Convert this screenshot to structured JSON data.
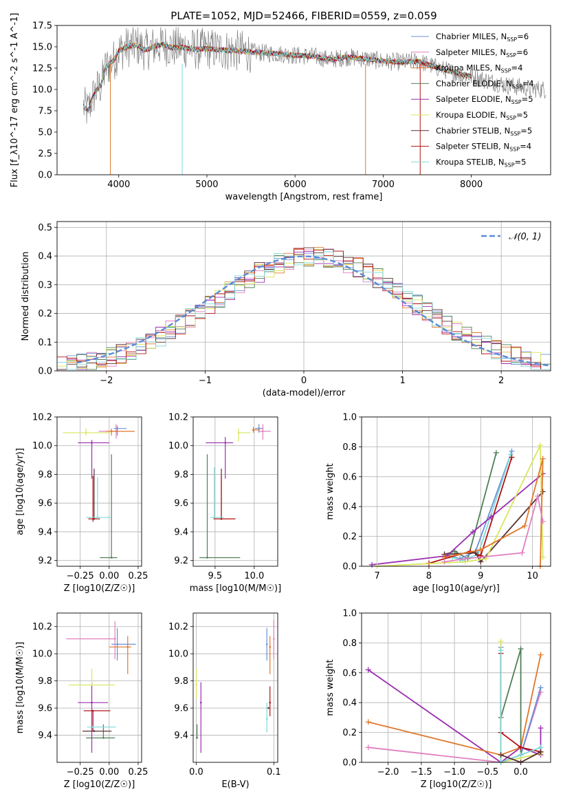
{
  "colors": {
    "blue": "#6b8fd6",
    "pink": "#e07fc0",
    "orange": "#e0772a",
    "dkgreen": "#4f7f54",
    "purple": "#9a2db0",
    "yellow": "#d8e65a",
    "brown": "#5a3030",
    "red": "#b01010",
    "cyan": "#7fd8d8",
    "gray": "#808080",
    "dashed": "#5b8bd9"
  },
  "chart_data": [
    {
      "id": "spectrum",
      "type": "line",
      "title": "PLATE=1052, MJD=52466, FIBERID=0559, z=0.059",
      "xlabel": "wavelength [Angstrom, rest frame]",
      "ylabel": "Flux [f_λ10^-17 erg cm^-2 s^-1 A^-1]",
      "xlim": [
        3300,
        8900
      ],
      "ylim": [
        0,
        17.5
      ],
      "xticks": [
        4000,
        5000,
        6000,
        7000,
        8000
      ],
      "yticks": [
        "0.0",
        "2.5",
        "5.0",
        "7.5",
        "10.0",
        "12.5",
        "15.0",
        "17.5"
      ],
      "x": [
        3600,
        3650,
        3700,
        3750,
        3800,
        3850,
        3900,
        3950,
        4000,
        4100,
        4200,
        4300,
        4400,
        4500,
        4600,
        4700,
        4800,
        4900,
        5000,
        5200,
        5400,
        5600,
        5800,
        6000,
        6200,
        6400,
        6600,
        6800,
        7000,
        7200,
        7400,
        7600,
        7800,
        8000,
        8200,
        8400,
        8600,
        8800
      ],
      "model_y": [
        8.0,
        7.5,
        9.0,
        10.0,
        10.5,
        12.5,
        13.0,
        13.5,
        14.5,
        15.0,
        15.2,
        14.6,
        15.0,
        15.3,
        14.9,
        15.0,
        14.8,
        14.7,
        14.8,
        14.6,
        14.5,
        14.3,
        14.2,
        14.0,
        13.9,
        13.5,
        13.8,
        13.6,
        13.3,
        13.2,
        13.3,
        12.6,
        12.0,
        11.5,
        11.0,
        10.5,
        10.2,
        10.0
      ],
      "series": [
        {
          "name": "Chabrier MILES, N_SSP=6",
          "color": "blue"
        },
        {
          "name": "Salpeter MILES, N_SSP=6",
          "color": "pink"
        },
        {
          "name": "Kroupa MILES, N_SSP=4",
          "color": "orange"
        },
        {
          "name": "Chabrier ELODIE, N_SSP=4",
          "color": "dkgreen"
        },
        {
          "name": "Salpeter ELODIE, N_SSP=5",
          "color": "purple"
        },
        {
          "name": "Kroupa ELODIE, N_SSP=5",
          "color": "yellow"
        },
        {
          "name": "Chabrier STELIB, N_SSP=5",
          "color": "brown"
        },
        {
          "name": "Salpeter STELIB, N_SSP=4",
          "color": "red"
        },
        {
          "name": "Kroupa STELIB, N_SSP=5",
          "color": "cyan"
        }
      ],
      "legend": "top-right",
      "grid": false
    },
    {
      "id": "residuals",
      "type": "line",
      "xlabel": "(data-model)/error",
      "ylabel": "Normed distribution",
      "xlim": [
        -2.5,
        2.5
      ],
      "ylim": [
        0,
        0.52
      ],
      "xticks": [
        "−2",
        "−1",
        "0",
        "1",
        "2"
      ],
      "yticks": [
        "0.0",
        "0.1",
        "0.2",
        "0.3",
        "0.4",
        "0.5"
      ],
      "legend_label": "𝒩(0, 1)",
      "bins": [
        -2.5,
        -2.4,
        -2.3,
        -2.2,
        -2.1,
        -2.0,
        -1.9,
        -1.8,
        -1.7,
        -1.6,
        -1.5,
        -1.4,
        -1.3,
        -1.2,
        -1.1,
        -1.0,
        -0.9,
        -0.8,
        -0.7,
        -0.6,
        -0.5,
        -0.4,
        -0.3,
        -0.2,
        -0.1,
        0.0,
        0.1,
        0.2,
        0.3,
        0.4,
        0.5,
        0.6,
        0.7,
        0.8,
        0.9,
        1.0,
        1.1,
        1.2,
        1.3,
        1.4,
        1.5,
        1.6,
        1.7,
        1.8,
        1.9,
        2.0,
        2.1,
        2.2,
        2.3,
        2.4,
        2.5
      ],
      "grid": true,
      "legend": "top-right"
    },
    {
      "id": "age-vs-Z",
      "type": "scatter",
      "xlabel": "Z [log10(Z/Z☉)]",
      "ylabel": "age  [log10(age/yr)]",
      "xlim": [
        -0.45,
        0.28
      ],
      "ylim": [
        9.16,
        10.2
      ],
      "xticks": [
        "−0.25",
        "0.00",
        "0.25"
      ],
      "yticks": [
        "9.2",
        "9.4",
        "9.6",
        "9.8",
        "10.0",
        "10.2"
      ],
      "points": [
        {
          "x": 0.07,
          "y": 10.12,
          "xerr": [
            0.03,
            0.08
          ],
          "yerr": [
            0.05,
            0.02
          ],
          "c": "blue"
        },
        {
          "x": 0.06,
          "y": 10.1,
          "xerr": [
            0.15,
            0.02
          ],
          "yerr": [
            0.05,
            0.05
          ],
          "c": "pink"
        },
        {
          "x": 0.02,
          "y": 10.1,
          "xerr": [
            0.05,
            0.2
          ],
          "yerr": [
            0.03,
            0.02
          ],
          "c": "orange"
        },
        {
          "x": 0.02,
          "y": 9.22,
          "xerr": [
            0.1,
            0.05
          ],
          "yerr": [
            0.0,
            0.72
          ],
          "c": "dkgreen"
        },
        {
          "x": -0.15,
          "y": 10.02,
          "xerr": [
            0.12,
            0.15
          ],
          "yerr": [
            0.25,
            0.02
          ],
          "c": "purple"
        },
        {
          "x": -0.2,
          "y": 10.09,
          "xerr": [
            0.2,
            0.21
          ],
          "yerr": [
            0.02,
            0.03
          ],
          "c": "yellow"
        },
        {
          "x": -0.13,
          "y": 9.49,
          "xerr": [
            0.0,
            0.0
          ],
          "yerr": [
            0.0,
            0.35
          ],
          "c": "brown"
        },
        {
          "x": -0.14,
          "y": 9.49,
          "xerr": [
            0.04,
            0.06
          ],
          "yerr": [
            0.02,
            0.3
          ],
          "c": "red"
        },
        {
          "x": -0.1,
          "y": 9.5,
          "xerr": [
            0.1,
            0.12
          ],
          "yerr": [
            0.02,
            0.28
          ],
          "c": "cyan"
        }
      ]
    },
    {
      "id": "age-vs-mass",
      "type": "scatter",
      "xlabel": "mass [log10(M/M☉)]",
      "ylabel": "",
      "xlim": [
        9.22,
        10.3
      ],
      "ylim": [
        9.16,
        10.2
      ],
      "xticks": [
        "9.5",
        "10.0"
      ],
      "yticks": [
        "9.2",
        "9.4",
        "9.6",
        "9.8",
        "10.0",
        "10.2"
      ],
      "points": [
        {
          "x": 10.06,
          "y": 10.12,
          "xerr": [
            0.05,
            0.06
          ],
          "yerr": [
            0.03,
            0.03
          ],
          "c": "blue"
        },
        {
          "x": 10.11,
          "y": 10.1,
          "xerr": [
            0.06,
            0.1
          ],
          "yerr": [
            0.06,
            0.05
          ],
          "c": "pink"
        },
        {
          "x": 9.99,
          "y": 10.11,
          "xerr": [
            0.02,
            0.08
          ],
          "yerr": [
            0.02,
            0.02
          ],
          "c": "orange"
        },
        {
          "x": 9.4,
          "y": 9.22,
          "xerr": [
            0.1,
            0.42
          ],
          "yerr": [
            0.0,
            0.72
          ],
          "c": "dkgreen"
        },
        {
          "x": 9.63,
          "y": 10.02,
          "xerr": [
            0.25,
            0.1
          ],
          "yerr": [
            0.25,
            0.04
          ],
          "c": "purple"
        },
        {
          "x": 9.8,
          "y": 10.09,
          "xerr": [
            0.0,
            0.15
          ],
          "yerr": [
            0.06,
            0.03
          ],
          "c": "yellow"
        },
        {
          "x": 9.58,
          "y": 9.49,
          "xerr": [
            0.0,
            0.0
          ],
          "yerr": [
            0.0,
            0.35
          ],
          "c": "brown"
        },
        {
          "x": 9.58,
          "y": 9.49,
          "xerr": [
            0.1,
            0.18
          ],
          "yerr": [
            0.0,
            0.3
          ],
          "c": "red"
        },
        {
          "x": 9.49,
          "y": 9.5,
          "xerr": [
            0.05,
            0.12
          ],
          "yerr": [
            0.0,
            0.35
          ],
          "c": "cyan"
        }
      ]
    },
    {
      "id": "mw-vs-age",
      "type": "line",
      "xlabel": "age  [log10(age/yr)]",
      "ylabel": "mass weight",
      "xlim": [
        6.7,
        10.35
      ],
      "ylim": [
        0,
        1.0
      ],
      "xticks": [
        "7",
        "8",
        "9",
        "10"
      ],
      "yticks": [
        "0.0",
        "0.2",
        "0.4",
        "0.6",
        "0.8",
        "1.0"
      ],
      "grid": true,
      "series": [
        {
          "c": "dkgreen",
          "x": [
            8.3,
            8.5,
            8.75,
            9.3
          ],
          "y": [
            0.08,
            0.1,
            0.05,
            0.76
          ]
        },
        {
          "c": "blue",
          "x": [
            8.4,
            8.6,
            8.9,
            9.6
          ],
          "y": [
            0.07,
            0.05,
            0.1,
            0.77
          ]
        },
        {
          "c": "cyan",
          "x": [
            8.45,
            8.65,
            8.95,
            9.58
          ],
          "y": [
            0.06,
            0.04,
            0.08,
            0.75
          ]
        },
        {
          "c": "red",
          "x": [
            8.0,
            8.8,
            9.0,
            9.6
          ],
          "y": [
            0.02,
            0.1,
            0.07,
            0.73
          ]
        },
        {
          "c": "brown",
          "x": [
            8.3,
            8.9,
            9.0,
            10.2
          ],
          "y": [
            0.08,
            0.09,
            0.03,
            0.5
          ]
        },
        {
          "c": "purple",
          "x": [
            6.9,
            8.35,
            8.85,
            9.2,
            10.2
          ],
          "y": [
            0.01,
            0.07,
            0.23,
            0.33,
            0.62
          ]
        },
        {
          "c": "yellow",
          "x": [
            7.0,
            8.7,
            9.1,
            10.15,
            10.2
          ],
          "y": [
            0.0,
            0.03,
            0.05,
            0.81,
            0.06
          ]
        },
        {
          "c": "orange",
          "x": [
            8.3,
            9.0,
            9.85,
            10.2,
            10.15
          ],
          "y": [
            0.06,
            0.11,
            0.27,
            0.72,
            0.0
          ]
        },
        {
          "c": "pink",
          "x": [
            8.3,
            8.7,
            9.8,
            10.1,
            10.2
          ],
          "y": [
            0.03,
            0.05,
            0.09,
            0.47,
            0.3
          ]
        }
      ]
    },
    {
      "id": "mass-vs-Z",
      "type": "scatter",
      "xlabel": "Z [log10(Z/Z☉)]",
      "ylabel": "mass [log10(M/M☉)]",
      "xlim": [
        -0.45,
        0.28
      ],
      "ylim": [
        9.2,
        10.3
      ],
      "xticks": [
        "−0.25",
        "0.00",
        "0.25"
      ],
      "yticks": [
        "9.4",
        "9.6",
        "9.8",
        "10.0",
        "10.2"
      ],
      "points": [
        {
          "x": 0.07,
          "y": 10.07,
          "xerr": [
            0.05,
            0.16
          ],
          "yerr": [
            0.12,
            0.12
          ],
          "c": "blue"
        },
        {
          "x": 0.05,
          "y": 10.11,
          "xerr": [
            0.42,
            0.0
          ],
          "yerr": [
            0.15,
            0.13
          ],
          "c": "pink"
        },
        {
          "x": 0.16,
          "y": 10.05,
          "xerr": [
            0.16,
            0.03
          ],
          "yerr": [
            0.2,
            0.08
          ],
          "c": "orange"
        },
        {
          "x": -0.05,
          "y": 9.38,
          "xerr": [
            0.15,
            0.1
          ],
          "yerr": [
            0.0,
            0.1
          ],
          "c": "dkgreen"
        },
        {
          "x": -0.15,
          "y": 9.64,
          "xerr": [
            0.12,
            0.14
          ],
          "yerr": [
            0.37,
            0.15
          ],
          "c": "purple"
        },
        {
          "x": -0.15,
          "y": 9.77,
          "xerr": [
            0.2,
            0.2
          ],
          "yerr": [
            0.0,
            0.12
          ],
          "c": "yellow"
        },
        {
          "x": -0.13,
          "y": 9.43,
          "xerr": [
            0.1,
            0.15
          ],
          "yerr": [
            0.0,
            0.0
          ],
          "c": "brown"
        },
        {
          "x": -0.14,
          "y": 9.58,
          "xerr": [
            0.08,
            0.15
          ],
          "yerr": [
            0.15,
            0.0
          ],
          "c": "red"
        },
        {
          "x": -0.14,
          "y": 9.46,
          "xerr": [
            0.05,
            0.2
          ],
          "yerr": [
            0.0,
            0.0
          ],
          "c": "cyan"
        }
      ]
    },
    {
      "id": "mass-vs-EBV",
      "type": "scatter",
      "xlabel": "E(B-V)",
      "ylabel": "",
      "xlim": [
        -0.004,
        0.105
      ],
      "ylim": [
        9.2,
        10.3
      ],
      "xticks": [
        "0.0",
        "0.1"
      ],
      "yticks": [
        "9.4",
        "9.6",
        "9.8",
        "10.0",
        "10.2"
      ],
      "points": [
        {
          "x": 0.091,
          "y": 10.07,
          "yerr": [
            0.12,
            0.12
          ],
          "c": "blue"
        },
        {
          "x": 0.1,
          "y": 10.11,
          "yerr": [
            0.15,
            0.14
          ],
          "c": "pink"
        },
        {
          "x": 0.095,
          "y": 10.05,
          "yerr": [
            0.2,
            0.08
          ],
          "c": "orange"
        },
        {
          "x": 0.001,
          "y": 9.38,
          "yerr": [
            0.0,
            0.1
          ],
          "c": "dkgreen"
        },
        {
          "x": 0.006,
          "y": 9.64,
          "yerr": [
            0.37,
            0.15
          ],
          "c": "purple"
        },
        {
          "x": 0.0,
          "y": 9.77,
          "yerr": [
            0.1,
            0.12
          ],
          "c": "yellow"
        },
        {
          "x": 0.093,
          "y": 9.6,
          "yerr": [
            0.0,
            0.0
          ],
          "c": "brown"
        },
        {
          "x": 0.095,
          "y": 9.64,
          "yerr": [
            0.1,
            0.12
          ],
          "c": "red"
        },
        {
          "x": 0.091,
          "y": 9.52,
          "yerr": [
            0.1,
            0.12
          ],
          "c": "cyan"
        }
      ]
    },
    {
      "id": "mw-vs-Z",
      "type": "line",
      "xlabel": "Z [log10(Z/Z☉)]",
      "ylabel": "mass weight",
      "xlim": [
        -2.4,
        0.45
      ],
      "ylim": [
        0,
        1.0
      ],
      "xticks": [
        "−2.0",
        "−1.5",
        "−1.0",
        "−0.5",
        "0.0"
      ],
      "yticks": [
        "0.0",
        "0.2",
        "0.4",
        "0.6",
        "0.8",
        "1.0"
      ],
      "grid": true,
      "series": [
        {
          "c": "purple",
          "x": [
            -2.3,
            -0.3,
            0.0,
            0.3,
            0.3
          ],
          "y": [
            0.62,
            0.0,
            0.1,
            0.05,
            0.23
          ]
        },
        {
          "c": "orange",
          "x": [
            -2.3,
            -0.3,
            0.0,
            0.3
          ],
          "y": [
            0.27,
            0.05,
            0.1,
            0.72
          ]
        },
        {
          "c": "pink",
          "x": [
            -2.3,
            -0.3,
            0.0,
            0.3
          ],
          "y": [
            0.1,
            0.0,
            0.05,
            0.47
          ]
        },
        {
          "c": "blue",
          "x": [
            -0.3,
            -0.3,
            0.0,
            0.3
          ],
          "y": [
            0.77,
            0.0,
            0.05,
            0.5
          ]
        },
        {
          "c": "dkgreen",
          "x": [
            -0.3,
            -0.3,
            0.0,
            0.0
          ],
          "y": [
            0.0,
            0.3,
            0.76,
            0.05
          ]
        },
        {
          "c": "yellow",
          "x": [
            -0.3,
            -0.3,
            0.0,
            0.3
          ],
          "y": [
            0.81,
            0.0,
            0.03,
            0.06
          ]
        },
        {
          "c": "red",
          "x": [
            -0.3,
            -0.3,
            0.0,
            0.3
          ],
          "y": [
            0.73,
            0.2,
            0.1,
            0.07
          ]
        },
        {
          "c": "cyan",
          "x": [
            -0.3,
            -0.3,
            0.0,
            0.3
          ],
          "y": [
            0.75,
            0.0,
            0.05,
            0.1
          ]
        },
        {
          "c": "brown",
          "x": [
            -0.3,
            0.0,
            0.3
          ],
          "y": [
            0.05,
            0.0,
            0.07
          ]
        }
      ]
    }
  ]
}
